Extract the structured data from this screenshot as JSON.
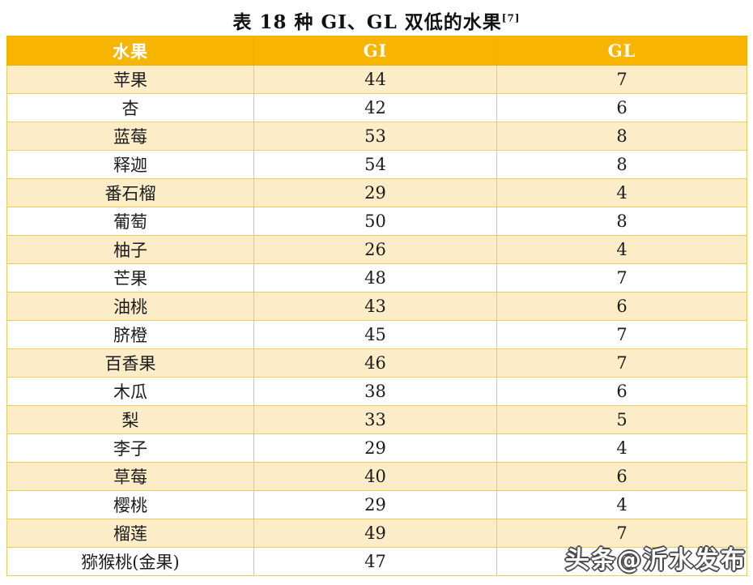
{
  "title": {
    "text": "表 18 种 GI、GL 双低的水果",
    "superscript": "[7]"
  },
  "chart_data": {
    "type": "table",
    "title": "表 18 种 GI、GL 双低的水果[7]",
    "columns": [
      "水果",
      "GI",
      "GL"
    ],
    "rows": [
      [
        "苹果",
        "44",
        "7"
      ],
      [
        "杏",
        "42",
        "6"
      ],
      [
        "蓝莓",
        "53",
        "8"
      ],
      [
        "释迦",
        "54",
        "8"
      ],
      [
        "番石榴",
        "29",
        "4"
      ],
      [
        "葡萄",
        "50",
        "8"
      ],
      [
        "柚子",
        "26",
        "4"
      ],
      [
        "芒果",
        "48",
        "7"
      ],
      [
        "油桃",
        "43",
        "6"
      ],
      [
        "脐橙",
        "45",
        "7"
      ],
      [
        "百香果",
        "46",
        "7"
      ],
      [
        "木瓜",
        "38",
        "6"
      ],
      [
        "梨",
        "33",
        "5"
      ],
      [
        "李子",
        "29",
        "4"
      ],
      [
        "草莓",
        "40",
        "6"
      ],
      [
        "樱桃",
        "29",
        "4"
      ],
      [
        "榴莲",
        "49",
        "7"
      ],
      [
        "猕猴桃(金果)",
        "47",
        ""
      ]
    ]
  },
  "watermark": {
    "corner_text": "头条@沂水发布",
    "diagonal_text": "沂水发布"
  },
  "colors": {
    "header_bg": "#f8b500",
    "row_stripe": "#fcedc8",
    "border": "#eecb5f",
    "header_text": "#ffffff"
  }
}
